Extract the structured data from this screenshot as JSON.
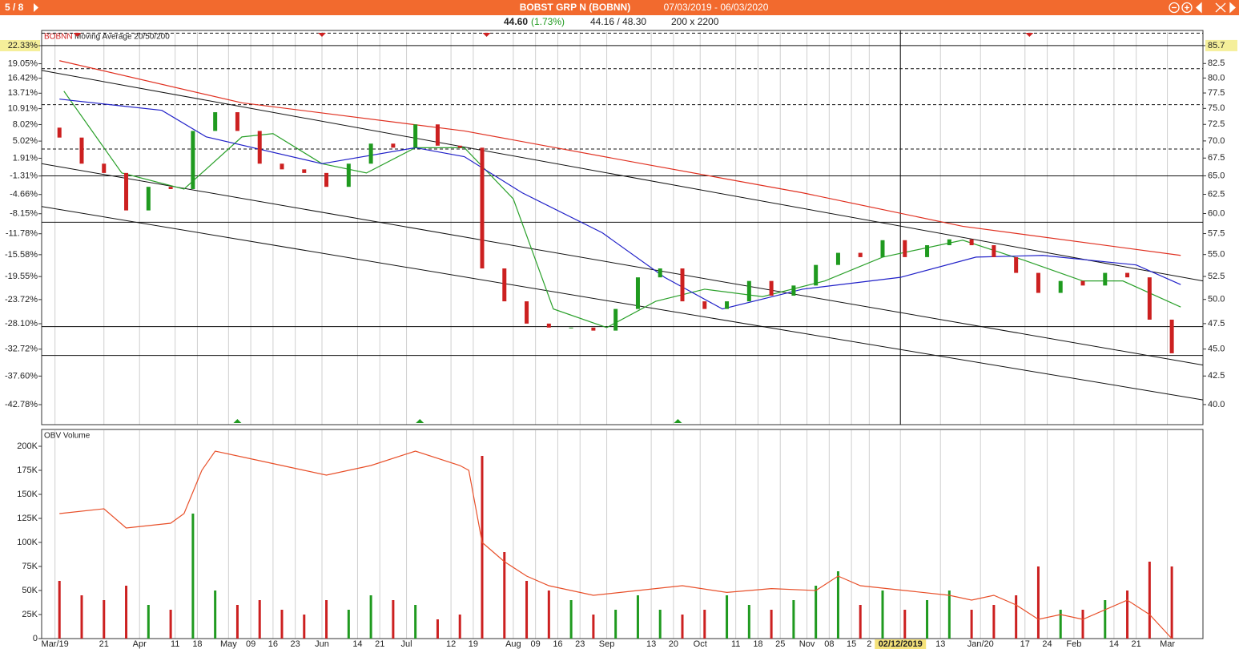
{
  "header": {
    "page": "5 / 8",
    "title": "BOBST GRP N (BOBNN)",
    "range": "07/03/2019 - 06/03/2020"
  },
  "quote": {
    "last": "44.60",
    "change": "(1.73%)",
    "range": "44.16 / 48.30",
    "size": "200 x 2200"
  },
  "chart_data": [
    {
      "type": "candlestick",
      "symbol": "BOBNN",
      "title": "Moving Average 20/50/200",
      "log_scale": true,
      "xlim": [
        -4,
        257
      ],
      "xticks": [
        {
          "value": -1,
          "label": "Mar/19"
        },
        {
          "value": 10,
          "label": "21"
        },
        {
          "value": 18,
          "label": "Apr"
        },
        {
          "value": 26,
          "label": "11"
        },
        {
          "value": 31,
          "label": "18"
        },
        {
          "value": 38,
          "label": "May"
        },
        {
          "value": 43,
          "label": "09"
        },
        {
          "value": 48,
          "label": "16"
        },
        {
          "value": 53,
          "label": "23"
        },
        {
          "value": 59,
          "label": "Jun"
        },
        {
          "value": 67,
          "label": "14"
        },
        {
          "value": 72,
          "label": "21"
        },
        {
          "value": 78,
          "label": "Jul"
        },
        {
          "value": 88,
          "label": "12"
        },
        {
          "value": 93,
          "label": "19"
        },
        {
          "value": 102,
          "label": "Aug"
        },
        {
          "value": 107,
          "label": "09"
        },
        {
          "value": 112,
          "label": "16"
        },
        {
          "value": 117,
          "label": "23"
        },
        {
          "value": 123,
          "label": "Sep"
        },
        {
          "value": 133,
          "label": "13"
        },
        {
          "value": 138,
          "label": "20"
        },
        {
          "value": 144,
          "label": "Oct"
        },
        {
          "value": 152,
          "label": "11"
        },
        {
          "value": 157,
          "label": "18"
        },
        {
          "value": 162,
          "label": "25"
        },
        {
          "value": 168,
          "label": "Nov"
        },
        {
          "value": 173,
          "label": "08"
        },
        {
          "value": 178,
          "label": "15"
        },
        {
          "value": 182,
          "label": "2"
        },
        {
          "value": 189,
          "label": "02/12/2019"
        },
        {
          "value": 198,
          "label": "13"
        },
        {
          "value": 207,
          "label": "Jan/20"
        },
        {
          "value": 217,
          "label": "17"
        },
        {
          "value": 222,
          "label": "24"
        },
        {
          "value": 228,
          "label": "Feb"
        },
        {
          "value": 237,
          "label": "14"
        },
        {
          "value": 242,
          "label": "21"
        },
        {
          "value": 249,
          "label": "Mar"
        }
      ],
      "crosshair": 189,
      "ylim": [
        38.33,
        88.2
      ],
      "yticks": [
        {
          "value": 40,
          "label": "40.0"
        },
        42.5,
        {
          "value": 45,
          "label": "45.0"
        },
        47.5,
        {
          "value": 50,
          "label": "50.0"
        },
        52.5,
        {
          "value": 55,
          "label": "55.0"
        },
        57.5,
        {
          "value": 60,
          "label": "60.0"
        },
        62.5,
        {
          "value": 65,
          "label": "65.0"
        },
        67.5,
        {
          "value": 70,
          "label": "70.0"
        },
        72.5,
        {
          "value": 75,
          "label": "75.0"
        },
        77.5,
        {
          "value": 80,
          "label": "80.0"
        },
        82.5,
        85.7
      ],
      "y2lim": [
        -46.41,
        24.8
      ],
      "y2ticks": [
        {
          "value": 22.33,
          "label": "22.33%"
        },
        {
          "value": 19.05,
          "label": "19.05%"
        },
        {
          "value": 16.42,
          "label": "16.42%"
        },
        {
          "value": 13.71,
          "label": "13.71%"
        },
        {
          "value": 10.91,
          "label": "10.91%"
        },
        {
          "value": 8.02,
          "label": "8.02%"
        },
        {
          "value": 5.02,
          "label": "5.02%"
        },
        {
          "value": 1.91,
          "label": "1.91%"
        },
        {
          "value": -1.31,
          "label": "-1.31%"
        },
        {
          "value": -4.66,
          "label": "-4.66%"
        },
        {
          "value": -8.15,
          "label": "-8.15%"
        },
        {
          "value": -11.78,
          "label": "-11.78%"
        },
        {
          "value": -15.58,
          "label": "-15.58%"
        },
        {
          "value": -19.55,
          "label": "-19.55%"
        },
        {
          "value": -23.72,
          "label": "-23.72%"
        },
        {
          "value": -28.1,
          "label": "-28.10%"
        },
        {
          "value": -32.72,
          "label": "-32.72%"
        },
        {
          "value": -37.6,
          "label": "-37.60%"
        },
        {
          "value": -42.78,
          "label": "-42.78%"
        }
      ],
      "up_color": "#1f9a1f",
      "down_color": "#cc2020",
      "candles": {
        "x": [
          0,
          5,
          10,
          15,
          20,
          25,
          30,
          35,
          40,
          45,
          50,
          55,
          60,
          65,
          70,
          75,
          80,
          85,
          90,
          95,
          100,
          105,
          110,
          115,
          120,
          125,
          130,
          135,
          140,
          145,
          150,
          155,
          160,
          165,
          170,
          175,
          180,
          185,
          190,
          195,
          200,
          205,
          210,
          215,
          220,
          225,
          230,
          235,
          240,
          245,
          250
        ],
        "open": [
          72,
          70.5,
          66.7,
          65.4,
          60.4,
          63.5,
          63.2,
          71.5,
          74.4,
          71.5,
          66.7,
          65.9,
          65.4,
          63.5,
          66.7,
          69.6,
          69,
          72.5,
          69.3,
          69,
          53.4,
          49.8,
          47.5,
          47.1,
          47.1,
          46.8,
          49,
          52.4,
          53.4,
          49.8,
          49,
          49.8,
          52,
          50.4,
          51.5,
          53.8,
          55.2,
          54.7,
          56.7,
          54.7,
          56.1,
          56.8,
          56.1,
          54.7,
          52.9,
          50.7,
          52,
          51.5,
          52.9,
          52.4,
          47.9
        ],
        "close": [
          70.5,
          66.7,
          65.4,
          60.4,
          63.5,
          63.2,
          71.5,
          74.4,
          71.5,
          66.7,
          65.9,
          65.4,
          63.5,
          66.7,
          69.6,
          69,
          72.5,
          69.3,
          69,
          53.4,
          49.8,
          47.5,
          47.1,
          47.1,
          46.8,
          49,
          52.4,
          53.4,
          49.8,
          49,
          49.8,
          52,
          50.4,
          51.5,
          53.8,
          55.2,
          54.7,
          56.7,
          54.7,
          56.1,
          56.8,
          56.1,
          54.7,
          52.9,
          50.7,
          52,
          51.5,
          52.9,
          52.4,
          47.9,
          44.6
        ]
      },
      "series": [
        {
          "color": "#2aa02a",
          "x": [
            1,
            14,
            28,
            41,
            48,
            59,
            69,
            80,
            91,
            102,
            111,
            123,
            134,
            145,
            158,
            172,
            185,
            203,
            217,
            230,
            239,
            252
          ],
          "values": [
            77.8,
            65.4,
            63.2,
            70.6,
            71.1,
            66.7,
            65.4,
            69,
            69,
            61.9,
            49,
            47.1,
            49.8,
            51.1,
            50.3,
            52,
            54.7,
            56.7,
            54.3,
            52,
            52,
            49.2
          ]
        },
        {
          "color": "#2020c8",
          "x": [
            0,
            23,
            33,
            59,
            80,
            91,
            104,
            122,
            136,
            149,
            167,
            189,
            206,
            221,
            242,
            252
          ],
          "values": [
            76.5,
            74.7,
            70.6,
            66.7,
            69,
            67.7,
            62.7,
            57.6,
            52.4,
            49,
            51.1,
            52.4,
            54.7,
            54.9,
            53.8,
            51.6
          ]
        },
        {
          "color": "#e03020",
          "x": [
            0,
            41,
            91,
            131,
            167,
            203,
            252
          ],
          "values": [
            83,
            75.9,
            71.5,
            66.7,
            62.7,
            58.4,
            54.9
          ]
        }
      ],
      "trendlines": [
        {
          "x": [
            -4,
            257
          ],
          "values": [
            81.3,
            52.0
          ]
        },
        {
          "x": [
            -4,
            257
          ],
          "values": [
            66.7,
            43.5
          ]
        },
        {
          "x": [
            -4,
            257
          ],
          "values": [
            60.9,
            40.4
          ]
        }
      ],
      "hlines": [
        {
          "value": 88.0,
          "style": "dashed"
        },
        {
          "value": 85.7,
          "style": "solid"
        },
        {
          "value": 81.6,
          "style": "dashed"
        },
        {
          "value": 75.6,
          "style": "dashed"
        },
        {
          "value": 68.8,
          "style": "dashed"
        },
        {
          "value": 65.0,
          "style": "solid"
        },
        {
          "value": 58.9,
          "style": "solid"
        },
        {
          "value": 47.2,
          "style": "solid"
        },
        {
          "value": 44.4,
          "style": "solid"
        }
      ],
      "signals_down": [
        4,
        59,
        96,
        218
      ],
      "signals_up": [
        40,
        81,
        139
      ]
    },
    {
      "type": "bar",
      "title": "OBV Volume",
      "ylim": [
        0,
        216667
      ],
      "yticks": [
        0,
        {
          "value": 25000,
          "label": "25K"
        },
        {
          "value": 50000,
          "label": "50K"
        },
        {
          "value": 75000,
          "label": "75K"
        },
        {
          "value": 100000,
          "label": "100K"
        },
        {
          "value": 125000,
          "label": "125K"
        },
        {
          "value": 150000,
          "label": "150K"
        },
        {
          "value": 175000,
          "label": "175K"
        },
        {
          "value": 200000,
          "label": "200K"
        }
      ],
      "x": [
        0,
        5,
        10,
        15,
        20,
        25,
        30,
        35,
        40,
        45,
        50,
        55,
        60,
        65,
        70,
        75,
        80,
        85,
        90,
        95,
        100,
        105,
        110,
        115,
        120,
        125,
        130,
        135,
        140,
        145,
        150,
        155,
        160,
        165,
        170,
        175,
        180,
        185,
        190,
        195,
        200,
        205,
        210,
        215,
        220,
        225,
        230,
        235,
        240,
        245,
        250
      ],
      "values": [
        60000,
        45000,
        40000,
        55000,
        35000,
        30000,
        130000,
        50000,
        35000,
        40000,
        30000,
        25000,
        40000,
        30000,
        45000,
        40000,
        35000,
        20000,
        25000,
        190000,
        90000,
        60000,
        50000,
        40000,
        25000,
        30000,
        45000,
        30000,
        25000,
        30000,
        45000,
        35000,
        30000,
        40000,
        55000,
        70000,
        35000,
        50000,
        30000,
        40000,
        50000,
        30000,
        35000,
        45000,
        75000,
        30000,
        30000,
        40000,
        50000,
        80000,
        75000
      ],
      "line": {
        "color": "#e8502a",
        "x": [
          0,
          10,
          15,
          25,
          28,
          32,
          35,
          45,
          55,
          60,
          70,
          80,
          90,
          92,
          95,
          100,
          105,
          110,
          120,
          130,
          140,
          150,
          160,
          170,
          175,
          180,
          190,
          200,
          205,
          210,
          215,
          220,
          225,
          230,
          240,
          245,
          250
        ],
        "values": [
          130000,
          135000,
          115000,
          120000,
          130000,
          175000,
          195000,
          185000,
          175000,
          170000,
          180000,
          195000,
          180000,
          175000,
          100000,
          80000,
          65000,
          55000,
          45000,
          50000,
          55000,
          48000,
          52000,
          50000,
          65000,
          55000,
          50000,
          45000,
          40000,
          45000,
          35000,
          20000,
          25000,
          20000,
          40000,
          25000,
          0
        ]
      }
    }
  ]
}
